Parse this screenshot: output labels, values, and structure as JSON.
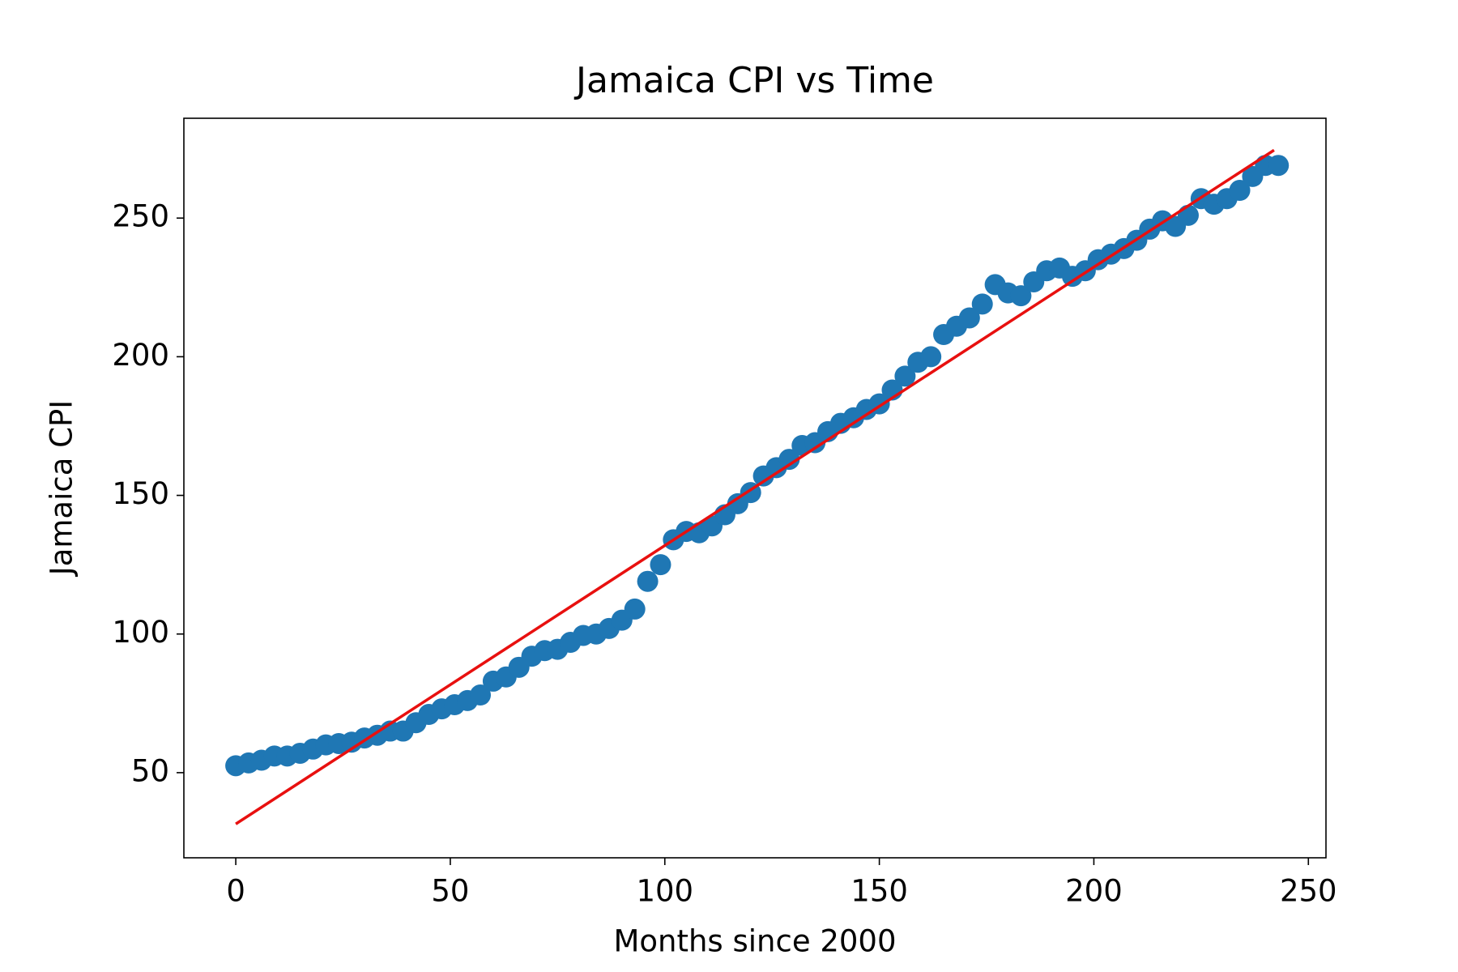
{
  "chart_data": {
    "type": "scatter",
    "title": "Jamaica CPI vs Time",
    "x_label": "Months since 2000",
    "y_label": "Jamaica CPI",
    "xlim": [
      -12.1,
      254.1
    ],
    "ylim": [
      19.3,
      286
    ],
    "xticks": [
      0,
      50,
      100,
      150,
      200,
      250
    ],
    "yticks": [
      50,
      100,
      150,
      200,
      250
    ],
    "grid": false,
    "series": [
      {
        "color": "#1f77b4",
        "x": [
          0,
          3,
          6,
          9,
          12,
          15,
          18,
          21,
          24,
          27,
          30,
          33,
          36,
          39,
          42,
          45,
          48,
          51,
          54,
          57,
          60,
          63,
          66,
          69,
          72,
          75,
          78,
          81,
          84,
          87,
          90,
          93,
          96,
          99,
          102,
          105,
          108,
          111,
          114,
          117,
          120,
          123,
          126,
          129,
          132,
          135,
          138,
          141,
          144,
          147,
          150,
          153,
          156,
          159,
          162,
          165,
          168,
          171,
          174,
          177,
          180,
          183,
          186,
          189,
          192,
          195,
          198,
          201,
          204,
          207,
          210,
          213,
          216,
          219,
          222,
          225,
          228,
          231,
          234,
          237,
          240,
          243
        ],
        "values": [
          52.5,
          53.5,
          54.5,
          56,
          56,
          57,
          58.5,
          60,
          60.5,
          61,
          62.5,
          63.5,
          65,
          65,
          68,
          71,
          73,
          74.5,
          76,
          78,
          83,
          84.5,
          88,
          92,
          94,
          94.5,
          97,
          99.5,
          100,
          102,
          105,
          109,
          119,
          125,
          134,
          137,
          136.5,
          139,
          143,
          147,
          151,
          157,
          160,
          163,
          168,
          169,
          173,
          176,
          178,
          181,
          183,
          188,
          193,
          198,
          200,
          208,
          211,
          214,
          219,
          226,
          223,
          222,
          227,
          231,
          232,
          229,
          231,
          235,
          237,
          239,
          242,
          246,
          249,
          247,
          251,
          257,
          255,
          257,
          260,
          265,
          269,
          269
        ]
      },
      {
        "type": "line",
        "color": "#e8100f",
        "x": [
          0,
          242
        ],
        "values": [
          31.5,
          274.5
        ]
      }
    ]
  }
}
